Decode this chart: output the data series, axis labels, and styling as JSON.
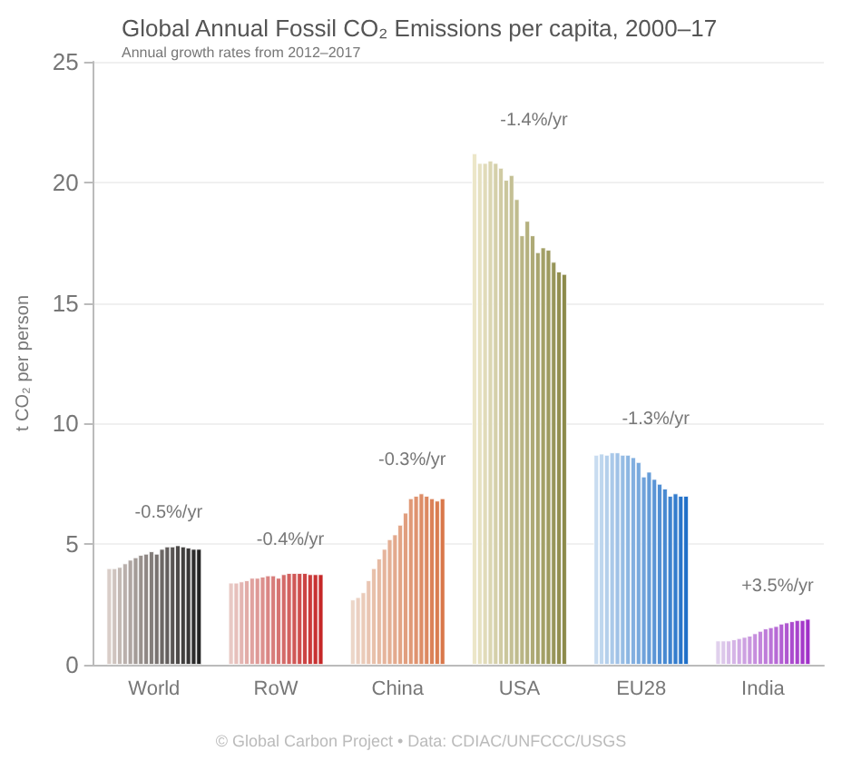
{
  "chart_data": {
    "type": "bar",
    "title": "Global Annual Fossil CO₂ Emissions per capita, 2000–17",
    "subtitle": "Annual growth rates from 2012–2017",
    "ylabel": "t CO₂ per person",
    "categories": [
      "World",
      "RoW",
      "China",
      "USA",
      "EU28",
      "India"
    ],
    "ylim": [
      0,
      25
    ],
    "yticks": [
      0,
      5,
      10,
      15,
      20,
      25
    ],
    "grid": "y",
    "series": [
      {
        "colors": [
          "#d9cdc8",
          "#e8c8c4",
          "#ecd6c8",
          "#ece6c8",
          "#c8dcf0",
          "#e0d0ec"
        ],
        "values": [
          4.0,
          3.4,
          2.7,
          21.2,
          8.7,
          1.0
        ]
      },
      {
        "colors": [
          "#cec3be",
          "#e6bfbb",
          "#ebd0c1",
          "#e6e1c1",
          "#bed6ee",
          "#dcc7ea"
        ],
        "values": [
          4.0,
          3.4,
          2.8,
          20.8,
          8.75,
          1.0
        ]
      },
      {
        "colors": [
          "#c3b9b4",
          "#e4b5b2",
          "#eacbb9",
          "#e1dbb9",
          "#b4cfeb",
          "#d8bde8"
        ],
        "values": [
          4.05,
          3.45,
          3.0,
          20.8,
          8.7,
          1.0
        ]
      },
      {
        "colors": [
          "#b9afab",
          "#e2aca8",
          "#e9c5b2",
          "#dbd6b2",
          "#aac9e9",
          "#d5b4e6"
        ],
        "values": [
          4.2,
          3.5,
          3.5,
          20.9,
          8.8,
          1.05
        ]
      },
      {
        "colors": [
          "#aea5a1",
          "#e0a29f",
          "#e8c0aa",
          "#d5d0aa",
          "#a0c2e7",
          "#d1aae4"
        ],
        "values": [
          4.35,
          3.6,
          4.0,
          20.8,
          8.8,
          1.1
        ]
      },
      {
        "colors": [
          "#a39b97",
          "#de9996",
          "#e6baa3",
          "#d0cba3",
          "#96bce4",
          "#cda1e1"
        ],
        "values": [
          4.45,
          3.6,
          4.4,
          20.6,
          8.7,
          1.15
        ]
      },
      {
        "colors": [
          "#98918d",
          "#dc908d",
          "#e5b49c",
          "#cac69c",
          "#8cb6e2",
          "#c998df"
        ],
        "values": [
          4.55,
          3.65,
          4.8,
          20.1,
          8.7,
          1.2
        ]
      },
      {
        "colors": [
          "#8e8784",
          "#da8684",
          "#e4af94",
          "#c4c094",
          "#82afe0",
          "#c68edd"
        ],
        "values": [
          4.6,
          3.7,
          5.2,
          20.3,
          8.6,
          1.3
        ]
      },
      {
        "colors": [
          "#837d7a",
          "#d87d7b",
          "#e3a98d",
          "#bfbb8d",
          "#78a9dd",
          "#c285db"
        ],
        "values": [
          4.7,
          3.7,
          5.4,
          19.3,
          8.4,
          1.4
        ]
      },
      {
        "colors": [
          "#787270",
          "#d67371",
          "#e2a485",
          "#b9b585",
          "#6fa2db",
          "#be7bd9"
        ],
        "values": [
          4.6,
          3.6,
          5.8,
          17.8,
          7.8,
          1.5
        ]
      },
      {
        "colors": [
          "#6d6866",
          "#d46a68",
          "#e19e7e",
          "#b4b07e",
          "#659cd8",
          "#ba72d7"
        ],
        "values": [
          4.8,
          3.75,
          6.3,
          18.4,
          8.0,
          1.55
        ]
      },
      {
        "colors": [
          "#635e5d",
          "#d2615f",
          "#e09976",
          "#aeaa76",
          "#5b95d6",
          "#b769d5"
        ],
        "values": [
          4.9,
          3.8,
          6.9,
          17.8,
          7.7,
          1.6
        ]
      },
      {
        "colors": [
          "#585453",
          "#d05756",
          "#df936f",
          "#a8a56f",
          "#518fd4",
          "#b35fd3"
        ],
        "values": [
          4.9,
          3.8,
          7.0,
          17.1,
          7.5,
          1.7
        ]
      },
      {
        "colors": [
          "#4d4a49",
          "#ce4e4d",
          "#dd8d67",
          "#a3a067",
          "#4789d1",
          "#af56d0"
        ],
        "values": [
          4.95,
          3.8,
          7.1,
          17.3,
          7.3,
          1.75
        ]
      },
      {
        "colors": [
          "#42403f",
          "#cc4444",
          "#dc8860",
          "#9d9a60",
          "#3d82cf",
          "#ab4cce"
        ],
        "values": [
          4.9,
          3.8,
          7.0,
          17.2,
          7.0,
          1.8
        ]
      },
      {
        "colors": [
          "#383636",
          "#ca3b3a",
          "#db8259",
          "#979559",
          "#337ccd",
          "#a843cc"
        ],
        "values": [
          4.85,
          3.75,
          6.9,
          16.7,
          7.1,
          1.85
        ]
      },
      {
        "colors": [
          "#2d2c2c",
          "#c83131",
          "#da7d51",
          "#928f51",
          "#2975ca",
          "#a439ca"
        ],
        "values": [
          4.8,
          3.75,
          6.8,
          16.3,
          7.0,
          1.85
        ]
      },
      {
        "colors": [
          "#222222",
          "#c62828",
          "#d9774a",
          "#8c8a4a",
          "#1f6fc8",
          "#a030c8"
        ],
        "values": [
          4.8,
          3.75,
          6.9,
          16.2,
          7.0,
          1.9
        ]
      }
    ],
    "annotations": [
      "-0.5%/yr",
      "-0.4%/yr",
      "-0.3%/yr",
      "-1.4%/yr",
      "-1.3%/yr",
      "+3.5%/yr",
      "© Global Carbon Project • Data: CDIAC/UNFCCC/USGS"
    ]
  }
}
